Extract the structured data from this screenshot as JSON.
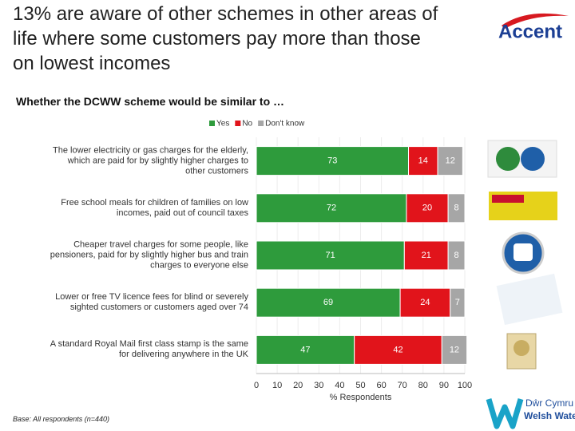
{
  "chart_data": {
    "type": "stacked-bar-horizontal",
    "title": "13% are aware of other schemes in other areas of life where some customers pay more than those on lowest incomes",
    "subtitle": "Whether the DCWW scheme would be similar to …",
    "categories": [
      "The lower electricity or gas charges for the elderly, which are paid for by slightly higher charges to other customers",
      "Free school meals for children of families on low incomes, paid out of council taxes",
      "Cheaper travel charges for some people, like pensioners, paid for by slightly higher bus and train charges to everyone else",
      "Lower or free TV licence fees for blind or severely sighted customers or customers aged over 74",
      "A standard Royal Mail first class stamp is the same for delivering anywhere in the UK"
    ],
    "series": [
      {
        "name": "Yes",
        "color": "#2e9b3c",
        "values": [
          73,
          72,
          71,
          69,
          47
        ]
      },
      {
        "name": "No",
        "color": "#e1141b",
        "values": [
          14,
          20,
          21,
          24,
          42
        ]
      },
      {
        "name": "Don't know",
        "color": "#a6a6a6",
        "values": [
          12,
          8,
          8,
          7,
          12
        ]
      }
    ],
    "xlabel": "% Respondents",
    "xlim": [
      0,
      100
    ],
    "xticks": [
      0,
      10,
      20,
      30,
      40,
      50,
      60,
      70,
      80,
      90,
      100
    ],
    "grid": true,
    "legend": "top",
    "note": "Base: All respondents (n=440)"
  },
  "logos": {
    "accent": "Accent",
    "welsh_water": [
      "Dŵr Cymru",
      "Welsh Water"
    ]
  }
}
